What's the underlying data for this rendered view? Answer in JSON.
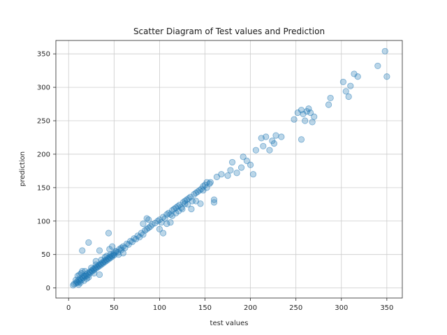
{
  "chart_data": {
    "type": "scatter",
    "title": "Scatter Diagram of Test values and Prediction",
    "xlabel": "test values",
    "ylabel": "prediction",
    "xlim": [
      -14,
      367
    ],
    "ylim": [
      -15,
      370
    ],
    "x_ticks": [
      0,
      50,
      100,
      150,
      200,
      250,
      300,
      350
    ],
    "y_ticks": [
      0,
      50,
      100,
      150,
      200,
      250,
      300,
      350
    ],
    "grid": true,
    "point_color": "#1f77b4",
    "point_alpha": 0.3,
    "series": [
      {
        "points": [
          [
            5,
            4
          ],
          [
            6,
            6
          ],
          [
            8,
            7
          ],
          [
            9,
            9
          ],
          [
            10,
            8
          ],
          [
            11,
            12
          ],
          [
            12,
            10
          ],
          [
            13,
            14
          ],
          [
            14,
            12
          ],
          [
            15,
            16
          ],
          [
            16,
            15
          ],
          [
            17,
            18
          ],
          [
            18,
            17
          ],
          [
            19,
            20
          ],
          [
            20,
            18
          ],
          [
            21,
            22
          ],
          [
            22,
            20
          ],
          [
            23,
            24
          ],
          [
            24,
            23
          ],
          [
            25,
            26
          ],
          [
            26,
            25
          ],
          [
            27,
            28
          ],
          [
            28,
            27
          ],
          [
            29,
            30
          ],
          [
            30,
            29
          ],
          [
            31,
            32
          ],
          [
            32,
            31
          ],
          [
            33,
            34
          ],
          [
            34,
            33
          ],
          [
            35,
            36
          ],
          [
            36,
            35
          ],
          [
            37,
            38
          ],
          [
            38,
            37
          ],
          [
            39,
            40
          ],
          [
            40,
            39
          ],
          [
            41,
            42
          ],
          [
            42,
            41
          ],
          [
            43,
            44
          ],
          [
            44,
            43
          ],
          [
            45,
            46
          ],
          [
            46,
            45
          ],
          [
            47,
            48
          ],
          [
            48,
            47
          ],
          [
            49,
            50
          ],
          [
            50,
            49
          ],
          [
            12,
            20
          ],
          [
            14,
            22
          ],
          [
            18,
            25
          ],
          [
            20,
            14
          ],
          [
            22,
            16
          ],
          [
            25,
            30
          ],
          [
            28,
            22
          ],
          [
            30,
            35
          ],
          [
            34,
            20
          ],
          [
            10,
            18
          ],
          [
            15,
            25
          ],
          [
            8,
            12
          ],
          [
            11,
            5
          ],
          [
            13,
            8
          ],
          [
            17,
            11
          ],
          [
            52,
            54
          ],
          [
            54,
            53
          ],
          [
            56,
            58
          ],
          [
            58,
            57
          ],
          [
            60,
            62
          ],
          [
            62,
            60
          ],
          [
            64,
            66
          ],
          [
            66,
            65
          ],
          [
            68,
            70
          ],
          [
            70,
            69
          ],
          [
            72,
            74
          ],
          [
            74,
            73
          ],
          [
            76,
            78
          ],
          [
            78,
            76
          ],
          [
            80,
            82
          ],
          [
            82,
            80
          ],
          [
            84,
            86
          ],
          [
            86,
            88
          ],
          [
            88,
            90
          ],
          [
            90,
            92
          ],
          [
            92,
            95
          ],
          [
            95,
            97
          ],
          [
            98,
            100
          ],
          [
            100,
            102
          ],
          [
            102,
            98
          ],
          [
            104,
            106
          ],
          [
            106,
            104
          ],
          [
            108,
            110
          ],
          [
            110,
            112
          ],
          [
            112,
            110
          ],
          [
            114,
            116
          ],
          [
            116,
            118
          ],
          [
            118,
            120
          ],
          [
            120,
            122
          ],
          [
            122,
            124
          ],
          [
            124,
            120
          ],
          [
            126,
            128
          ],
          [
            128,
            130
          ],
          [
            130,
            132
          ],
          [
            132,
            134
          ],
          [
            134,
            136
          ],
          [
            136,
            130
          ],
          [
            138,
            140
          ],
          [
            140,
            142
          ],
          [
            142,
            144
          ],
          [
            144,
            146
          ],
          [
            146,
            148
          ],
          [
            148,
            152
          ],
          [
            150,
            154
          ],
          [
            152,
            150
          ],
          [
            155,
            156
          ],
          [
            15,
            56
          ],
          [
            22,
            68
          ],
          [
            34,
            56
          ],
          [
            44,
            82
          ],
          [
            45,
            58
          ],
          [
            52,
            55
          ],
          [
            48,
            62
          ],
          [
            55,
            50
          ],
          [
            60,
            52
          ],
          [
            82,
            96
          ],
          [
            86,
            104
          ],
          [
            88,
            102
          ],
          [
            100,
            88
          ],
          [
            104,
            82
          ],
          [
            108,
            96
          ],
          [
            112,
            98
          ],
          [
            114,
            108
          ],
          [
            118,
            112
          ],
          [
            121,
            115
          ],
          [
            125,
            118
          ],
          [
            128,
            126
          ],
          [
            131,
            125
          ],
          [
            135,
            118
          ],
          [
            140,
            130
          ],
          [
            145,
            126
          ],
          [
            148,
            146
          ],
          [
            152,
            158
          ],
          [
            156,
            158
          ],
          [
            160,
            132
          ],
          [
            160,
            128
          ],
          [
            163,
            166
          ],
          [
            168,
            170
          ],
          [
            175,
            168
          ],
          [
            178,
            176
          ],
          [
            180,
            188
          ],
          [
            185,
            172
          ],
          [
            190,
            180
          ],
          [
            192,
            196
          ],
          [
            196,
            190
          ],
          [
            200,
            184
          ],
          [
            203,
            170
          ],
          [
            206,
            206
          ],
          [
            212,
            224
          ],
          [
            214,
            212
          ],
          [
            217,
            226
          ],
          [
            221,
            206
          ],
          [
            224,
            220
          ],
          [
            226,
            216
          ],
          [
            228,
            228
          ],
          [
            234,
            226
          ],
          [
            248,
            252
          ],
          [
            252,
            262
          ],
          [
            256,
            222
          ],
          [
            256,
            266
          ],
          [
            258,
            260
          ],
          [
            260,
            250
          ],
          [
            262,
            264
          ],
          [
            264,
            268
          ],
          [
            266,
            262
          ],
          [
            268,
            248
          ],
          [
            270,
            256
          ],
          [
            286,
            274
          ],
          [
            288,
            284
          ],
          [
            302,
            308
          ],
          [
            305,
            294
          ],
          [
            308,
            286
          ],
          [
            310,
            302
          ],
          [
            314,
            320
          ],
          [
            318,
            316
          ],
          [
            340,
            332
          ],
          [
            348,
            354
          ],
          [
            350,
            316
          ],
          [
            30,
            40
          ],
          [
            36,
            42
          ],
          [
            40,
            46
          ],
          [
            42,
            48
          ],
          [
            46,
            50
          ],
          [
            50,
            52
          ],
          [
            58,
            60
          ]
        ]
      }
    ]
  }
}
